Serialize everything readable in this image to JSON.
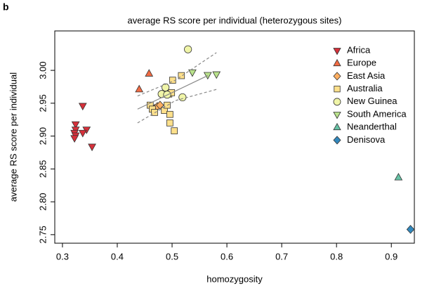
{
  "panel_label": "b",
  "chart_data": {
    "type": "scatter",
    "title": "average RS score per individual (heterozygous sites)",
    "x_label": "homozygosity",
    "y_label": "average RS score per individual",
    "xlim": [
      0.286,
      0.942
    ],
    "ylim": [
      2.737,
      3.06
    ],
    "xticks": [
      0.3,
      0.4,
      0.5,
      0.6,
      0.7,
      0.8,
      0.9
    ],
    "yticks": [
      {
        "value": 3.0,
        "label": "3.00"
      },
      2.95,
      {
        "value": 2.9,
        "label": "2.90"
      },
      2.85,
      {
        "value": 2.8,
        "label": "2.80"
      },
      2.75
    ],
    "legend": "top-right",
    "series": [
      {
        "name": "Africa",
        "color": "#d7303a",
        "marker": "triangle-down",
        "x": [
          0.337,
          0.324,
          0.324,
          0.344,
          0.337,
          0.322,
          0.324,
          0.322,
          0.354
        ],
        "values": [
          2.946,
          2.918,
          2.91,
          2.91,
          2.905,
          2.905,
          2.901,
          2.897,
          2.884
        ]
      },
      {
        "name": "Europe",
        "color": "#f26b43",
        "marker": "triangle-up",
        "x": [
          0.44,
          0.458
        ],
        "values": [
          2.971,
          2.995
        ]
      },
      {
        "name": "East Asia",
        "color": "#fdae61",
        "marker": "diamond",
        "x": [
          0.468,
          0.473,
          0.478
        ],
        "values": [
          2.942,
          2.945,
          2.947
        ]
      },
      {
        "name": "Australia",
        "color": "#fee08b",
        "marker": "square",
        "x": [
          0.517,
          0.501,
          0.46,
          0.464,
          0.468,
          0.486,
          0.494,
          0.499,
          0.491,
          0.496,
          0.504,
          0.496
        ],
        "values": [
          2.992,
          2.985,
          2.947,
          2.941,
          2.936,
          2.939,
          2.964,
          2.966,
          2.947,
          2.933,
          2.908,
          2.92
        ]
      },
      {
        "name": "New Guinea",
        "color": "#f0f5a8",
        "marker": "circle",
        "x": [
          0.529,
          0.488,
          0.481,
          0.491,
          0.519
        ],
        "values": [
          3.032,
          2.974,
          2.964,
          2.963,
          2.959
        ]
      },
      {
        "name": "South America",
        "color": "#b9e28c",
        "marker": "triangle-down",
        "x": [
          0.537,
          0.565,
          0.581
        ],
        "values": [
          2.997,
          2.993,
          2.994
        ]
      },
      {
        "name": "Neanderthal",
        "color": "#66c2a5",
        "marker": "triangle-up",
        "x": [
          0.913
        ],
        "values": [
          2.837
        ]
      },
      {
        "name": "Denisova",
        "color": "#3288bd",
        "marker": "diamond",
        "x": [
          0.935
        ],
        "values": [
          2.758
        ]
      }
    ],
    "fit": {
      "x": [
        0.437,
        0.565
      ],
      "values": [
        2.941,
        2.992
      ],
      "color": "#888888"
    },
    "ci_upper": {
      "x": [
        0.437,
        0.506,
        0.581
      ],
      "values": [
        2.961,
        2.985,
        3.027
      ],
      "color": "#888888"
    },
    "ci_lower": {
      "x": [
        0.437,
        0.506,
        0.581
      ],
      "values": [
        2.92,
        2.954,
        2.971
      ],
      "color": "#888888"
    }
  }
}
